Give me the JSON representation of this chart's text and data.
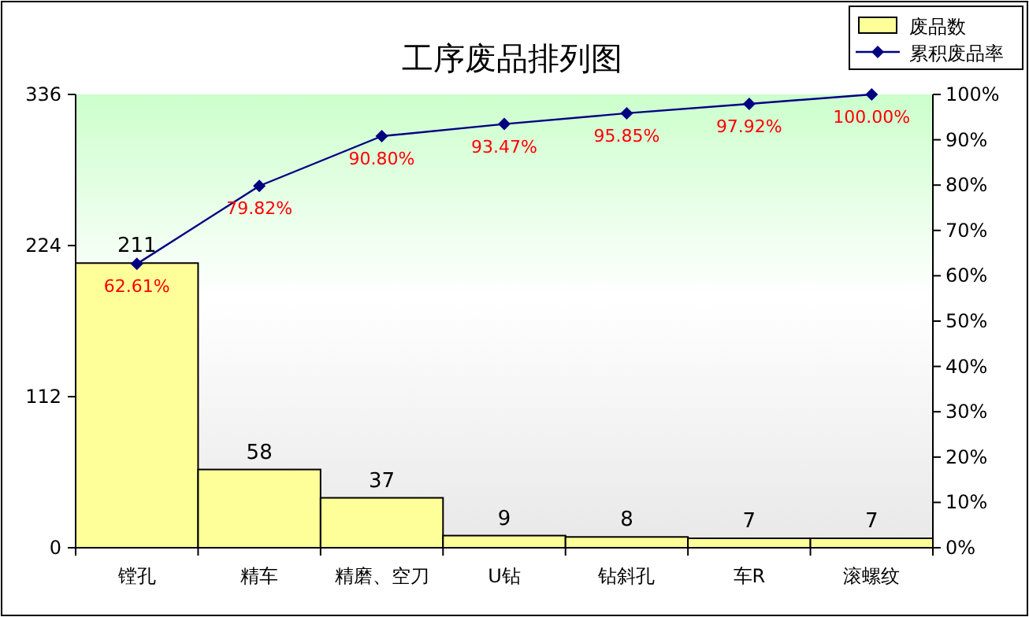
{
  "chart_data": {
    "type": "bar",
    "title": "工序废品排列图",
    "categories": [
      "镗孔",
      "精车",
      "精磨、空刀",
      "U钻",
      "钻斜孔",
      "车R",
      "滚螺纹"
    ],
    "series": [
      {
        "name": "废品数",
        "color": "#ffff99",
        "values": [
          211,
          58,
          37,
          9,
          8,
          7,
          7
        ],
        "value_labels": [
          "211",
          "58",
          "37",
          "9",
          "8",
          "7",
          "7"
        ]
      },
      {
        "name": "累积废品率",
        "type": "line",
        "axis": "y2",
        "color": "#000080",
        "marker": "diamond",
        "values": [
          62.61,
          79.82,
          90.8,
          93.47,
          95.85,
          97.92,
          100.0
        ],
        "value_labels": [
          "62.61%",
          "79.82%",
          "90.80%",
          "93.47%",
          "95.85%",
          "97.92%",
          "100.00%"
        ]
      }
    ],
    "ylim": [
      0,
      336
    ],
    "yticks": [
      0,
      112,
      224,
      336
    ],
    "y2lim": [
      0,
      100
    ],
    "y2ticks": [
      {
        "value": 0,
        "label": "0%"
      },
      {
        "value": 10,
        "label": "10%"
      },
      {
        "value": 20,
        "label": "20%"
      },
      {
        "value": 30,
        "label": "30%"
      },
      {
        "value": 40,
        "label": "40%"
      },
      {
        "value": 50,
        "label": "50%"
      },
      {
        "value": 60,
        "label": "60%"
      },
      {
        "value": 70,
        "label": "70%"
      },
      {
        "value": 80,
        "label": "80%"
      },
      {
        "value": 90,
        "label": "90%"
      },
      {
        "value": 100,
        "label": "100%"
      }
    ],
    "legend": "top right",
    "grid": false
  }
}
